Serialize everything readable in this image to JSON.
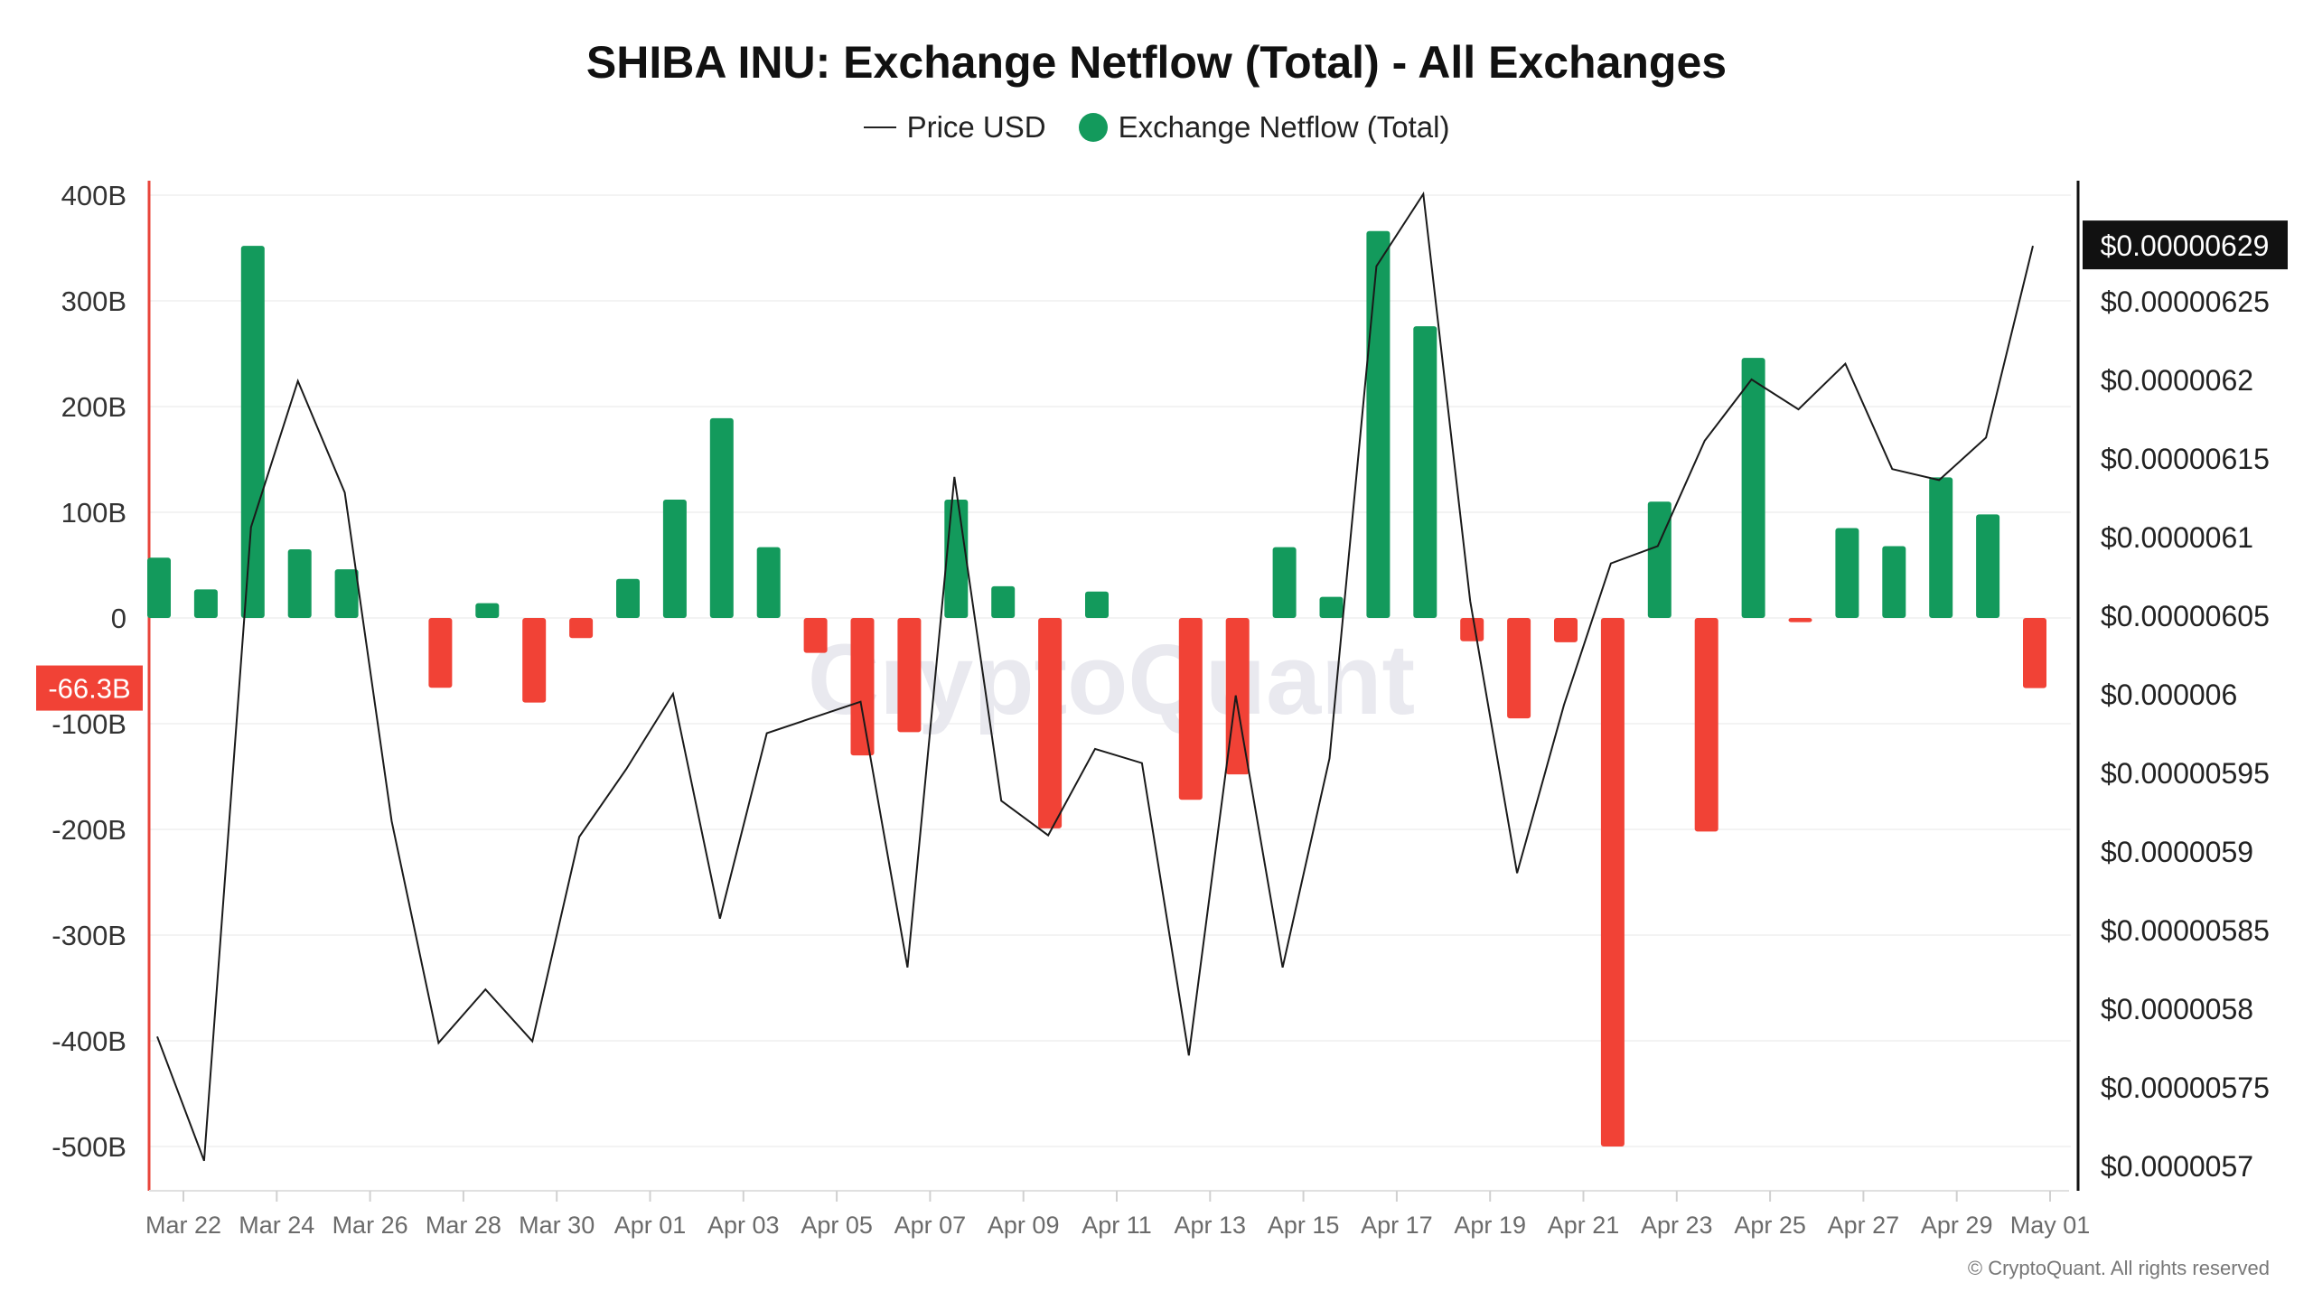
{
  "title": "SHIBA INU: Exchange Netflow (Total) - All Exchanges",
  "legend": {
    "price_label": "Price USD",
    "netflow_label": "Exchange Netflow (Total)"
  },
  "watermark": "CryptoQuant",
  "footer": "© CryptoQuant. All rights reserved",
  "colors": {
    "positive": "#139a5c",
    "negative": "#f14236",
    "price_line": "#1a1a1a",
    "left_axis": "#e8443a",
    "right_axis": "#111111"
  },
  "chart_data": {
    "type": "bar",
    "x_tick_labels": [
      "Mar 22",
      "Mar 24",
      "Mar 26",
      "Mar 28",
      "Mar 30",
      "Apr 01",
      "Apr 03",
      "Apr 05",
      "Apr 07",
      "Apr 09",
      "Apr 11",
      "Apr 13",
      "Apr 15",
      "Apr 17",
      "Apr 19",
      "Apr 21",
      "Apr 23",
      "Apr 25",
      "Apr 27",
      "Apr 29",
      "May 01"
    ],
    "y_ticks": [
      "400B",
      "300B",
      "200B",
      "100B",
      "0",
      "-100B",
      "-200B",
      "-300B",
      "-400B",
      "-500B"
    ],
    "y_tick_values": [
      400,
      300,
      200,
      100,
      0,
      -100,
      -200,
      -300,
      -400,
      -500
    ],
    "ylim": [
      -540,
      405
    ],
    "y2_ticks": [
      "$0.00000625",
      "$0.0000062",
      "$0.00000615",
      "$0.0000061",
      "$0.00000605",
      "$0.000006",
      "$0.00000595",
      "$0.0000059",
      "$0.00000585",
      "$0.0000058",
      "$0.00000575",
      "$0.0000057"
    ],
    "y2_tick_values": [
      6.25,
      6.2,
      6.15,
      6.1,
      6.05,
      6.0,
      5.95,
      5.9,
      5.85,
      5.8,
      5.75,
      5.7
    ],
    "y2_unit_note": "price values stored in units of 1e-6 USD",
    "current_netflow_label": "-66.3B",
    "current_price_label": "$0.00000629",
    "series": [
      {
        "name": "Exchange Netflow (Total)",
        "type": "bar",
        "x": [
          "Mar 21",
          "Mar 22",
          "Mar 23",
          "Mar 24",
          "Mar 25",
          "Mar 26",
          "Mar 27",
          "Mar 28",
          "Mar 29",
          "Mar 30",
          "Mar 31",
          "Apr 01",
          "Apr 02",
          "Apr 03",
          "Apr 04",
          "Apr 05",
          "Apr 06",
          "Apr 07",
          "Apr 08",
          "Apr 09",
          "Apr 10",
          "Apr 11",
          "Apr 12",
          "Apr 13",
          "Apr 14",
          "Apr 15",
          "Apr 16",
          "Apr 17",
          "Apr 18",
          "Apr 19",
          "Apr 20",
          "Apr 21",
          "Apr 22",
          "Apr 23",
          "Apr 24",
          "Apr 25",
          "Apr 26",
          "Apr 27",
          "Apr 28",
          "Apr 29",
          "Apr 30"
        ],
        "values": [
          57,
          27,
          352,
          65,
          46,
          null,
          -66,
          14,
          -80,
          -19,
          37,
          112,
          189,
          67,
          -33,
          -130,
          -108,
          112,
          30,
          -199,
          25,
          null,
          -172,
          -148,
          67,
          20,
          366,
          276,
          -22,
          -95,
          -23,
          -500,
          110,
          -202,
          246,
          -4,
          85,
          68,
          133,
          98,
          -66.3
        ]
      },
      {
        "name": "Price USD",
        "type": "line",
        "x": [
          "Mar 21",
          "Mar 22",
          "Mar 23",
          "Mar 24",
          "Mar 25",
          "Mar 26",
          "Mar 27",
          "Mar 28",
          "Mar 29",
          "Mar 30",
          "Mar 31",
          "Apr 01",
          "Apr 02",
          "Apr 03",
          "Apr 04",
          "Apr 05",
          "Apr 06",
          "Apr 07",
          "Apr 08",
          "Apr 09",
          "Apr 10",
          "Apr 11",
          "Apr 12",
          "Apr 13",
          "Apr 14",
          "Apr 15",
          "Apr 16",
          "Apr 17",
          "Apr 18",
          "Apr 19",
          "Apr 20",
          "Apr 21",
          "Apr 22",
          "Apr 23",
          "Apr 24",
          "Apr 25",
          "Apr 26",
          "Apr 27",
          "Apr 28",
          "Apr 29",
          "Apr 30"
        ],
        "values": [
          5.782,
          5.703,
          6.106,
          6.199,
          6.128,
          5.919,
          5.778,
          5.812,
          5.779,
          5.909,
          5.952,
          6.0,
          5.857,
          5.975,
          5.985,
          5.995,
          5.826,
          6.138,
          5.932,
          5.91,
          5.965,
          5.956,
          5.77,
          5.999,
          5.826,
          5.959,
          6.272,
          6.318,
          6.059,
          5.886,
          5.993,
          6.083,
          6.094,
          6.161,
          6.2,
          6.181,
          6.21,
          6.143,
          6.136,
          6.163,
          6.285
        ]
      }
    ]
  }
}
